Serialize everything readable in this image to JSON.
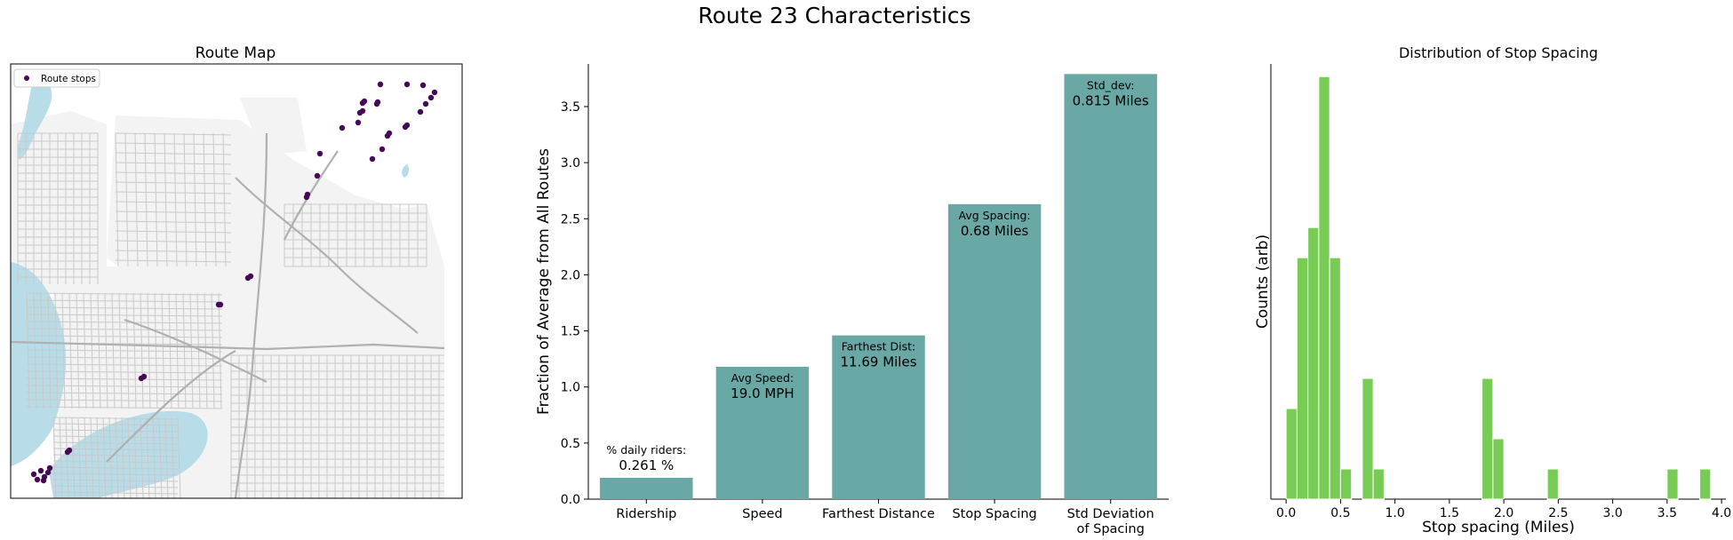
{
  "suptitle": "Route 23 Characteristics",
  "colors": {
    "bar": "#6aa8a6",
    "hist": "#78cb55",
    "stop": "#450a55",
    "water": "#b8dde9",
    "land": "#f5f5f5",
    "road": "#c9c9c9",
    "major_road": "#b0b0b0"
  },
  "map_panel": {
    "title": "Route Map",
    "legend_label": "Route stops",
    "stop_icon": "dot-marker-icon"
  },
  "chart_data": [
    {
      "type": "bar",
      "title": "",
      "xlabel": "",
      "ylabel": "Fraction of Average from All Routes",
      "categories": [
        "Ridership",
        "Speed",
        "Farthest Distance",
        "Stop Spacing",
        "Std Deviation of Spacing"
      ],
      "category_lines": [
        [
          "Ridership"
        ],
        [
          "Speed"
        ],
        [
          "Farthest Distance"
        ],
        [
          "Stop Spacing"
        ],
        [
          "Std Deviation",
          "of Spacing"
        ]
      ],
      "values": [
        0.19,
        1.18,
        1.46,
        2.63,
        3.79
      ],
      "ylim": [
        0,
        3.88
      ],
      "yticks": [
        "0.0",
        "0.5",
        "1.0",
        "1.5",
        "2.0",
        "2.5",
        "3.0",
        "3.5"
      ],
      "annotations": [
        {
          "label": "% daily riders:",
          "value": "0.261 %"
        },
        {
          "label": "Avg Speed:",
          "value": "19.0 MPH"
        },
        {
          "label": "Farthest Dist:",
          "value": "11.69 Miles"
        },
        {
          "label": "Avg Spacing:",
          "value": "0.68 Miles"
        },
        {
          "label": "Std_dev:",
          "value": "0.815 Miles"
        }
      ],
      "grid": false
    },
    {
      "type": "bar",
      "title": "Distribution of Stop Spacing",
      "xlabel": "Stop spacing (Miles)",
      "ylabel": "Counts (arb)",
      "xlim": [
        -0.14,
        4.04
      ],
      "bin_width": 0.1,
      "bins_left": [
        0.0,
        0.1,
        0.2,
        0.3,
        0.4,
        0.5,
        0.7,
        0.8,
        1.8,
        1.9,
        2.4,
        3.5,
        3.8
      ],
      "counts": [
        3,
        8,
        9,
        14,
        8,
        1,
        4,
        1,
        4,
        2,
        1,
        1,
        1
      ],
      "xticks": [
        "0.0",
        "0.5",
        "1.0",
        "1.5",
        "2.0",
        "2.5",
        "3.0",
        "3.5",
        "4.0"
      ],
      "grid": false
    }
  ]
}
